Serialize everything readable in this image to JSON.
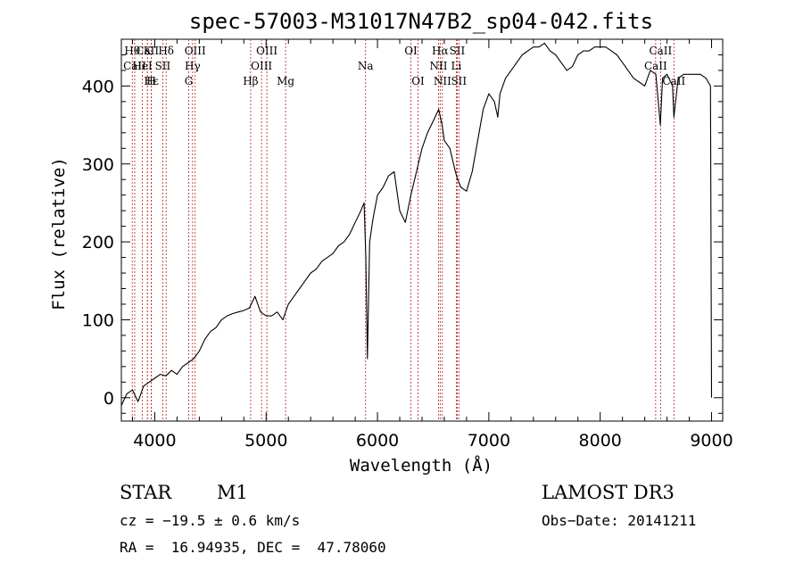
{
  "chart_data": {
    "type": "line",
    "title": "spec-57003-M31017N47B2_sp04-042.fits",
    "xlabel": "Wavelength (Å)",
    "ylabel": "Flux (relative)",
    "xlim": [
      3700,
      9100
    ],
    "ylim": [
      -30,
      460
    ],
    "xticks": [
      4000,
      5000,
      6000,
      7000,
      8000,
      9000
    ],
    "xtick_labels": [
      "4000",
      "5000",
      "6000",
      "7000",
      "8000",
      "9000"
    ],
    "yticks": [
      0,
      100,
      200,
      300,
      400
    ],
    "ytick_labels": [
      "0",
      "100",
      "200",
      "300",
      "400"
    ],
    "series": [
      {
        "name": "flux",
        "x": [
          3700,
          3750,
          3800,
          3850,
          3900,
          3950,
          4000,
          4050,
          4100,
          4150,
          4200,
          4250,
          4300,
          4350,
          4400,
          4450,
          4500,
          4550,
          4600,
          4650,
          4700,
          4750,
          4800,
          4850,
          4900,
          4950,
          5000,
          5050,
          5100,
          5150,
          5200,
          5250,
          5300,
          5350,
          5400,
          5450,
          5500,
          5550,
          5600,
          5650,
          5700,
          5750,
          5800,
          5850,
          5880,
          5895,
          5910,
          5930,
          5960,
          6000,
          6050,
          6100,
          6150,
          6200,
          6250,
          6300,
          6350,
          6400,
          6450,
          6500,
          6550,
          6580,
          6600,
          6650,
          6700,
          6720,
          6750,
          6800,
          6850,
          6900,
          6950,
          7000,
          7050,
          7080,
          7100,
          7150,
          7200,
          7250,
          7300,
          7350,
          7400,
          7450,
          7500,
          7550,
          7600,
          7650,
          7700,
          7750,
          7800,
          7850,
          7900,
          7950,
          8000,
          8050,
          8100,
          8150,
          8200,
          8250,
          8300,
          8350,
          8400,
          8450,
          8500,
          8540,
          8560,
          8600,
          8650,
          8662,
          8700,
          8750,
          8800,
          8850,
          8900,
          8950,
          8990,
          9000
        ],
        "y": [
          -10,
          5,
          10,
          -5,
          15,
          20,
          25,
          30,
          28,
          35,
          30,
          40,
          45,
          50,
          60,
          75,
          85,
          90,
          100,
          105,
          108,
          110,
          112,
          115,
          130,
          110,
          105,
          105,
          110,
          100,
          120,
          130,
          140,
          150,
          160,
          165,
          175,
          180,
          185,
          195,
          200,
          210,
          225,
          240,
          250,
          180,
          50,
          200,
          230,
          260,
          270,
          285,
          290,
          240,
          225,
          260,
          290,
          320,
          340,
          355,
          370,
          350,
          330,
          320,
          290,
          280,
          270,
          265,
          290,
          330,
          370,
          390,
          380,
          360,
          390,
          410,
          420,
          430,
          440,
          445,
          450,
          450,
          455,
          445,
          440,
          430,
          420,
          425,
          440,
          445,
          445,
          450,
          450,
          450,
          445,
          440,
          430,
          420,
          410,
          405,
          400,
          420,
          415,
          350,
          410,
          415,
          400,
          360,
          410,
          415,
          415,
          415,
          415,
          410,
          400,
          0
        ],
        "color": "#000000"
      }
    ],
    "lines": [
      {
        "name": "CaII",
        "wavelength": 3934,
        "row": 0
      },
      {
        "name": "Hθ",
        "wavelength": 3798,
        "row": 0
      },
      {
        "name": "CaII",
        "wavelength": 3820,
        "row": 1
      },
      {
        "name": "Hε",
        "wavelength": 3970,
        "row": 2
      },
      {
        "name": "K",
        "wavelength": 3934,
        "row": 0
      },
      {
        "name": "HeI",
        "wavelength": 3889,
        "row": 1
      },
      {
        "name": "Hδ",
        "wavelength": 4102,
        "row": 0
      },
      {
        "name": "SII",
        "wavelength": 4072,
        "row": 1
      },
      {
        "name": "H",
        "wavelength": 3969,
        "row": 2
      },
      {
        "name": "OIII",
        "wavelength": 4363,
        "row": 0
      },
      {
        "name": "Hγ",
        "wavelength": 4340,
        "row": 1
      },
      {
        "name": "G",
        "wavelength": 4305,
        "row": 2
      },
      {
        "name": "OIII",
        "wavelength": 5007,
        "row": 0
      },
      {
        "name": "OIII",
        "wavelength": 4959,
        "row": 1
      },
      {
        "name": "Hβ",
        "wavelength": 4861,
        "row": 2
      },
      {
        "name": "Mg",
        "wavelength": 5175,
        "row": 2
      },
      {
        "name": "Na",
        "wavelength": 5893,
        "row": 1
      },
      {
        "name": "OI",
        "wavelength": 6300,
        "row": 0
      },
      {
        "name": "OI",
        "wavelength": 6364,
        "row": 2
      },
      {
        "name": "Hα",
        "wavelength": 6563,
        "row": 0
      },
      {
        "name": "SII",
        "wavelength": 6716,
        "row": 0
      },
      {
        "name": "NII",
        "wavelength": 6548,
        "row": 1
      },
      {
        "name": "Li",
        "wavelength": 6708,
        "row": 1
      },
      {
        "name": "NII",
        "wavelength": 6583,
        "row": 2
      },
      {
        "name": "SII",
        "wavelength": 6731,
        "row": 2
      },
      {
        "name": "CaII",
        "wavelength": 8542,
        "row": 0
      },
      {
        "name": "CaII",
        "wavelength": 8498,
        "row": 1
      },
      {
        "name": "CaII",
        "wavelength": 8662,
        "row": 2
      }
    ],
    "line_color": "#b22222"
  },
  "info": {
    "object_class": "STAR",
    "subclass": "M1",
    "survey": "LAMOST DR3",
    "cz": "cz = −19.5 ± 0.6 km/s",
    "obs_date": "Obs−Date: 20141211",
    "coords": "RA =  16.94935, DEC =  47.78060"
  }
}
